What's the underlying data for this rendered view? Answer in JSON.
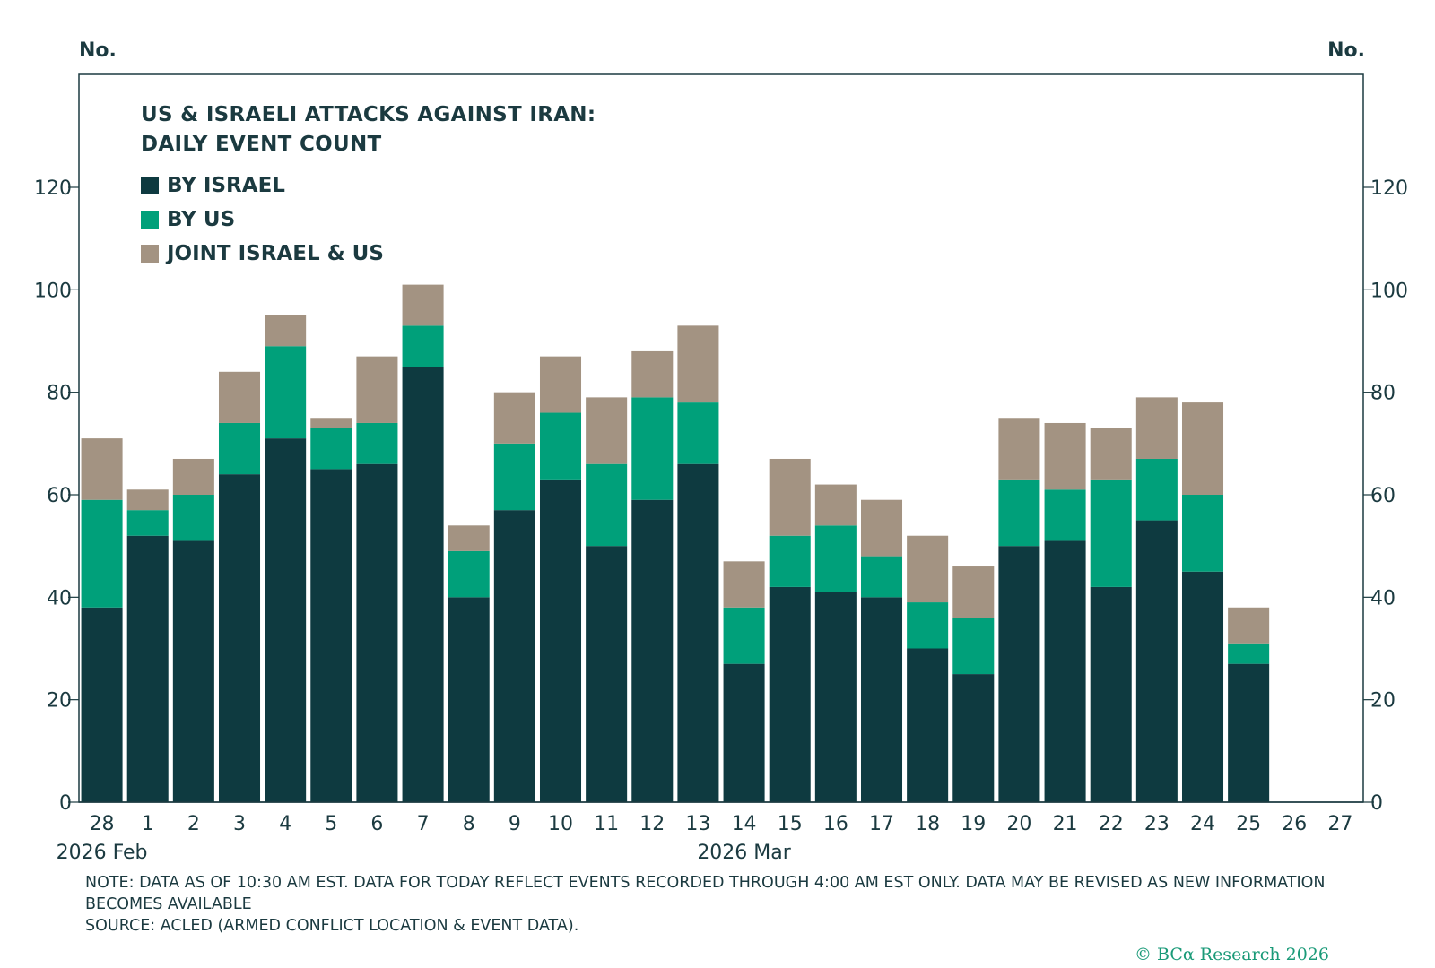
{
  "chart_data": {
    "type": "bar",
    "stacked": true,
    "title": "US & ISRAELI ATTACKS AGAINST IRAN: DAILY EVENT COUNT",
    "title_lines": [
      "US & ISRAELI ATTACKS AGAINST IRAN:",
      "DAILY EVENT COUNT"
    ],
    "ylabel_left": "No.",
    "ylabel_right": "No.",
    "ylim": [
      0,
      140
    ],
    "yticks": [
      0,
      20,
      40,
      60,
      80,
      100,
      120
    ],
    "categories": [
      "28",
      "1",
      "2",
      "3",
      "4",
      "5",
      "6",
      "7",
      "8",
      "9",
      "10",
      "11",
      "12",
      "13",
      "14",
      "15",
      "16",
      "17",
      "18",
      "19",
      "20",
      "21",
      "22",
      "23",
      "24",
      "25",
      "26",
      "27"
    ],
    "period_labels": [
      {
        "label": "2026 Feb",
        "category": "28"
      },
      {
        "label": "2026 Mar",
        "category": "14"
      }
    ],
    "legend": [
      "BY ISRAEL",
      "BY US",
      "JOINT ISRAEL & US"
    ],
    "series": [
      {
        "name": "BY ISRAEL",
        "color": "#0e3a40",
        "values": [
          38,
          52,
          51,
          64,
          71,
          65,
          66,
          85,
          40,
          57,
          63,
          50,
          59,
          66,
          27,
          42,
          41,
          40,
          30,
          25,
          50,
          51,
          42,
          55,
          45,
          27,
          0,
          0
        ]
      },
      {
        "name": "BY US",
        "color": "#00a07a",
        "values": [
          21,
          5,
          9,
          10,
          18,
          8,
          8,
          8,
          9,
          13,
          13,
          16,
          20,
          12,
          11,
          10,
          13,
          8,
          9,
          11,
          13,
          10,
          21,
          12,
          15,
          4,
          0,
          0
        ]
      },
      {
        "name": "JOINT ISRAEL & US",
        "color": "#a39382",
        "values": [
          12,
          4,
          7,
          10,
          6,
          2,
          13,
          8,
          5,
          10,
          11,
          13,
          9,
          15,
          9,
          15,
          8,
          11,
          13,
          10,
          12,
          13,
          10,
          12,
          18,
          7,
          0,
          0
        ]
      }
    ]
  },
  "footnote": {
    "note": "NOTE: DATA AS OF 10:30 AM EST. DATA FOR TODAY REFLECT EVENTS RECORDED THROUGH 4:00 AM EST ONLY. DATA MAY BE REVISED AS NEW INFORMATION BECOMES AVAILABLE",
    "source": "SOURCE: ACLED (ARMED CONFLICT LOCATION & EVENT DATA)."
  },
  "copyright": "© BCα Research 2026"
}
